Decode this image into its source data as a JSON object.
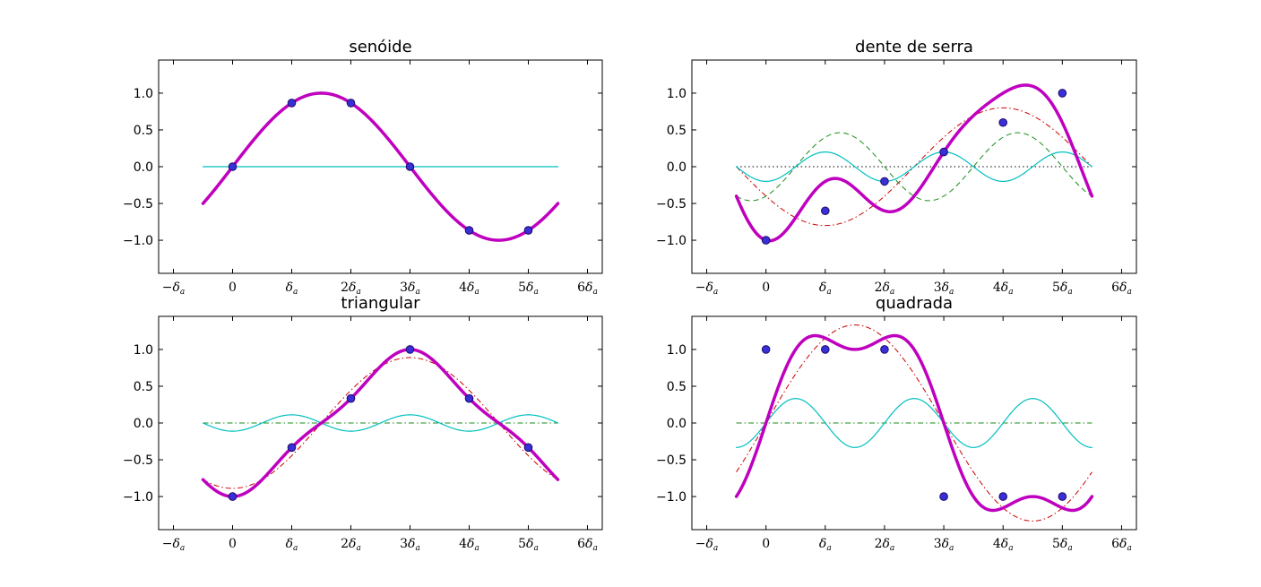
{
  "chart_data": [
    {
      "type": "line",
      "title": "senóide",
      "xlabel": "",
      "ylabel": "",
      "xlim": [
        -1.25,
        6.25
      ],
      "ylim": [
        -1.45,
        1.45
      ],
      "xticks": [
        -1,
        0,
        1,
        2,
        3,
        4,
        5,
        6
      ],
      "xtick_labels": [
        {
          "c": "−",
          "s": "a"
        },
        {
          "c": "0",
          "s": ""
        },
        {
          "c": "",
          "s": "a"
        },
        {
          "c": "2",
          "s": "a"
        },
        {
          "c": "3",
          "s": "a"
        },
        {
          "c": "4",
          "s": "a"
        },
        {
          "c": "5",
          "s": "a"
        },
        {
          "c": "6",
          "s": "a"
        }
      ],
      "yticks": [
        -1.0,
        -0.5,
        0.0,
        0.5,
        1.0
      ],
      "ytick_labels": [
        "−1.0",
        "−0.5",
        "0.0",
        "0.5",
        "1.0"
      ],
      "grid": false,
      "x_range": [
        -0.5,
        5.5
      ],
      "series": [
        {
          "role": "harmonic",
          "color": "#cc0000",
          "dash": "dashdot",
          "width": 1,
          "coeffs": {
            "a": [
              0
            ],
            "b": [
              0
            ]
          }
        },
        {
          "role": "harmonic",
          "color": "#1a8c1a",
          "dash": "dashdot",
          "width": 1,
          "coeffs": {
            "a": [
              0
            ],
            "b": [
              0
            ]
          }
        },
        {
          "role": "harmonic",
          "color": "#00bfbf",
          "dash": "solid",
          "width": 1.2,
          "coeffs": {
            "a": [
              0
            ],
            "b": [
              0
            ]
          }
        },
        {
          "role": "sum",
          "color": "#bf00bf",
          "dash": "solid",
          "width": 3.5,
          "coeffs": {
            "a": [
              0,
              0,
              0
            ],
            "b": [
              1,
              0,
              0
            ]
          }
        }
      ],
      "points": {
        "x": [
          0,
          1,
          2,
          3,
          4,
          5
        ],
        "y": [
          0.0,
          0.866,
          0.866,
          0.0,
          -0.866,
          -0.866
        ]
      }
    },
    {
      "type": "line",
      "title": "dente de serra",
      "xlabel": "",
      "ylabel": "",
      "xlim": [
        -1.25,
        6.25
      ],
      "ylim": [
        -1.45,
        1.45
      ],
      "xticks": [
        -1,
        0,
        1,
        2,
        3,
        4,
        5,
        6
      ],
      "xtick_labels": [
        {
          "c": "−",
          "s": "a"
        },
        {
          "c": "0",
          "s": ""
        },
        {
          "c": "",
          "s": "a"
        },
        {
          "c": "2",
          "s": "a"
        },
        {
          "c": "3",
          "s": "a"
        },
        {
          "c": "4",
          "s": "a"
        },
        {
          "c": "5",
          "s": "a"
        },
        {
          "c": "6",
          "s": "a"
        }
      ],
      "yticks": [
        -1.0,
        -0.5,
        0.0,
        0.5,
        1.0
      ],
      "ytick_labels": [
        "−1.0",
        "−0.5",
        "0.0",
        "0.5",
        "1.0"
      ],
      "grid": false,
      "x_range": [
        -0.5,
        5.5
      ],
      "series": [
        {
          "role": "harmonic",
          "color": "#000000",
          "dash": "dotted",
          "width": 1,
          "coeffs": {
            "a": [
              0
            ],
            "b": [
              0
            ]
          }
        },
        {
          "role": "harmonic",
          "color": "#cc0000",
          "dash": "dashdot",
          "width": 1,
          "coeffs": {
            "a": [
              -0.4,
              0,
              0
            ],
            "b": [
              -0.693,
              0,
              0
            ]
          }
        },
        {
          "role": "harmonic",
          "color": "#1a8c1a",
          "dash": "dashed",
          "width": 1,
          "coeffs": {
            "a": [
              0,
              -0.4,
              0
            ],
            "b": [
              0,
              0.231,
              0
            ]
          }
        },
        {
          "role": "harmonic",
          "color": "#00bfbf",
          "dash": "solid",
          "width": 1.2,
          "coeffs": {
            "a": [
              0,
              0,
              -0.2
            ],
            "b": [
              0,
              0,
              0
            ]
          }
        },
        {
          "role": "sum",
          "color": "#bf00bf",
          "dash": "solid",
          "width": 3.5,
          "coeffs": {
            "a": [
              -0.4,
              -0.4,
              -0.2
            ],
            "b": [
              -0.693,
              0.231,
              0
            ]
          }
        }
      ],
      "points": {
        "x": [
          0,
          1,
          2,
          3,
          4,
          5
        ],
        "y": [
          -1.0,
          -0.6,
          -0.2,
          0.2,
          0.6,
          1.0
        ]
      }
    },
    {
      "type": "line",
      "title": "triangular",
      "xlabel": "",
      "ylabel": "",
      "xlim": [
        -1.25,
        6.25
      ],
      "ylim": [
        -1.45,
        1.45
      ],
      "xticks": [
        -1,
        0,
        1,
        2,
        3,
        4,
        5,
        6
      ],
      "xtick_labels": [
        {
          "c": "−",
          "s": "a"
        },
        {
          "c": "0",
          "s": ""
        },
        {
          "c": "",
          "s": "a"
        },
        {
          "c": "2",
          "s": "a"
        },
        {
          "c": "3",
          "s": "a"
        },
        {
          "c": "4",
          "s": "a"
        },
        {
          "c": "5",
          "s": "a"
        },
        {
          "c": "6",
          "s": "a"
        }
      ],
      "yticks": [
        -1.0,
        -0.5,
        0.0,
        0.5,
        1.0
      ],
      "ytick_labels": [
        "−1.0",
        "−0.5",
        "0.0",
        "0.5",
        "1.0"
      ],
      "grid": false,
      "x_range": [
        -0.5,
        5.5
      ],
      "series": [
        {
          "role": "harmonic",
          "color": "#cc0000",
          "dash": "dashdot",
          "width": 1,
          "coeffs": {
            "a": [
              -0.889,
              0,
              0
            ],
            "b": [
              0,
              0,
              0
            ]
          }
        },
        {
          "role": "harmonic",
          "color": "#1a8c1a",
          "dash": "dashdot",
          "width": 1,
          "coeffs": {
            "a": [
              0,
              0,
              0
            ],
            "b": [
              0,
              0,
              0
            ]
          }
        },
        {
          "role": "harmonic",
          "color": "#00bfbf",
          "dash": "solid",
          "width": 1.2,
          "coeffs": {
            "a": [
              0,
              0,
              -0.111
            ],
            "b": [
              0,
              0,
              0
            ]
          }
        },
        {
          "role": "sum",
          "color": "#bf00bf",
          "dash": "solid",
          "width": 3.5,
          "coeffs": {
            "a": [
              -0.889,
              0,
              -0.111
            ],
            "b": [
              0,
              0,
              0
            ]
          }
        }
      ],
      "points": {
        "x": [
          0,
          1,
          2,
          3,
          4,
          5
        ],
        "y": [
          -1.0,
          -0.333,
          0.333,
          1.0,
          0.333,
          -0.333
        ]
      }
    },
    {
      "type": "line",
      "title": "quadrada",
      "xlabel": "",
      "ylabel": "",
      "xlim": [
        -1.25,
        6.25
      ],
      "ylim": [
        -1.45,
        1.45
      ],
      "xticks": [
        -1,
        0,
        1,
        2,
        3,
        4,
        5,
        6
      ],
      "xtick_labels": [
        {
          "c": "−",
          "s": "a"
        },
        {
          "c": "0",
          "s": ""
        },
        {
          "c": "",
          "s": "a"
        },
        {
          "c": "2",
          "s": "a"
        },
        {
          "c": "3",
          "s": "a"
        },
        {
          "c": "4",
          "s": "a"
        },
        {
          "c": "5",
          "s": "a"
        },
        {
          "c": "6",
          "s": "a"
        }
      ],
      "yticks": [
        -1.0,
        -0.5,
        0.0,
        0.5,
        1.0
      ],
      "ytick_labels": [
        "−1.0",
        "−0.5",
        "0.0",
        "0.5",
        "1.0"
      ],
      "grid": false,
      "x_range": [
        -0.5,
        5.5
      ],
      "series": [
        {
          "role": "harmonic",
          "color": "#cc0000",
          "dash": "dashdot",
          "width": 1,
          "coeffs": {
            "a": [
              0
            ],
            "b": [
              1.333
            ]
          }
        },
        {
          "role": "harmonic",
          "color": "#1a8c1a",
          "dash": "dashdot",
          "width": 1,
          "coeffs": {
            "a": [
              0
            ],
            "b": [
              0
            ]
          }
        },
        {
          "role": "harmonic",
          "color": "#00bfbf",
          "dash": "solid",
          "width": 1.2,
          "coeffs": {
            "a": [
              0,
              0,
              0
            ],
            "b": [
              0,
              0,
              0.333
            ]
          }
        },
        {
          "role": "sum",
          "color": "#bf00bf",
          "dash": "solid",
          "width": 3.5,
          "coeffs": {
            "a": [
              0,
              0,
              0
            ],
            "b": [
              1.333,
              0,
              0.333
            ]
          }
        }
      ],
      "points": {
        "x": [
          0,
          1,
          2,
          3,
          4,
          5
        ],
        "y": [
          1.0,
          1.0,
          1.0,
          -1.0,
          -1.0,
          -1.0
        ]
      }
    }
  ],
  "colors": {
    "points_fill": "#3a2fd6",
    "points_edge": "#1a0a6b"
  }
}
